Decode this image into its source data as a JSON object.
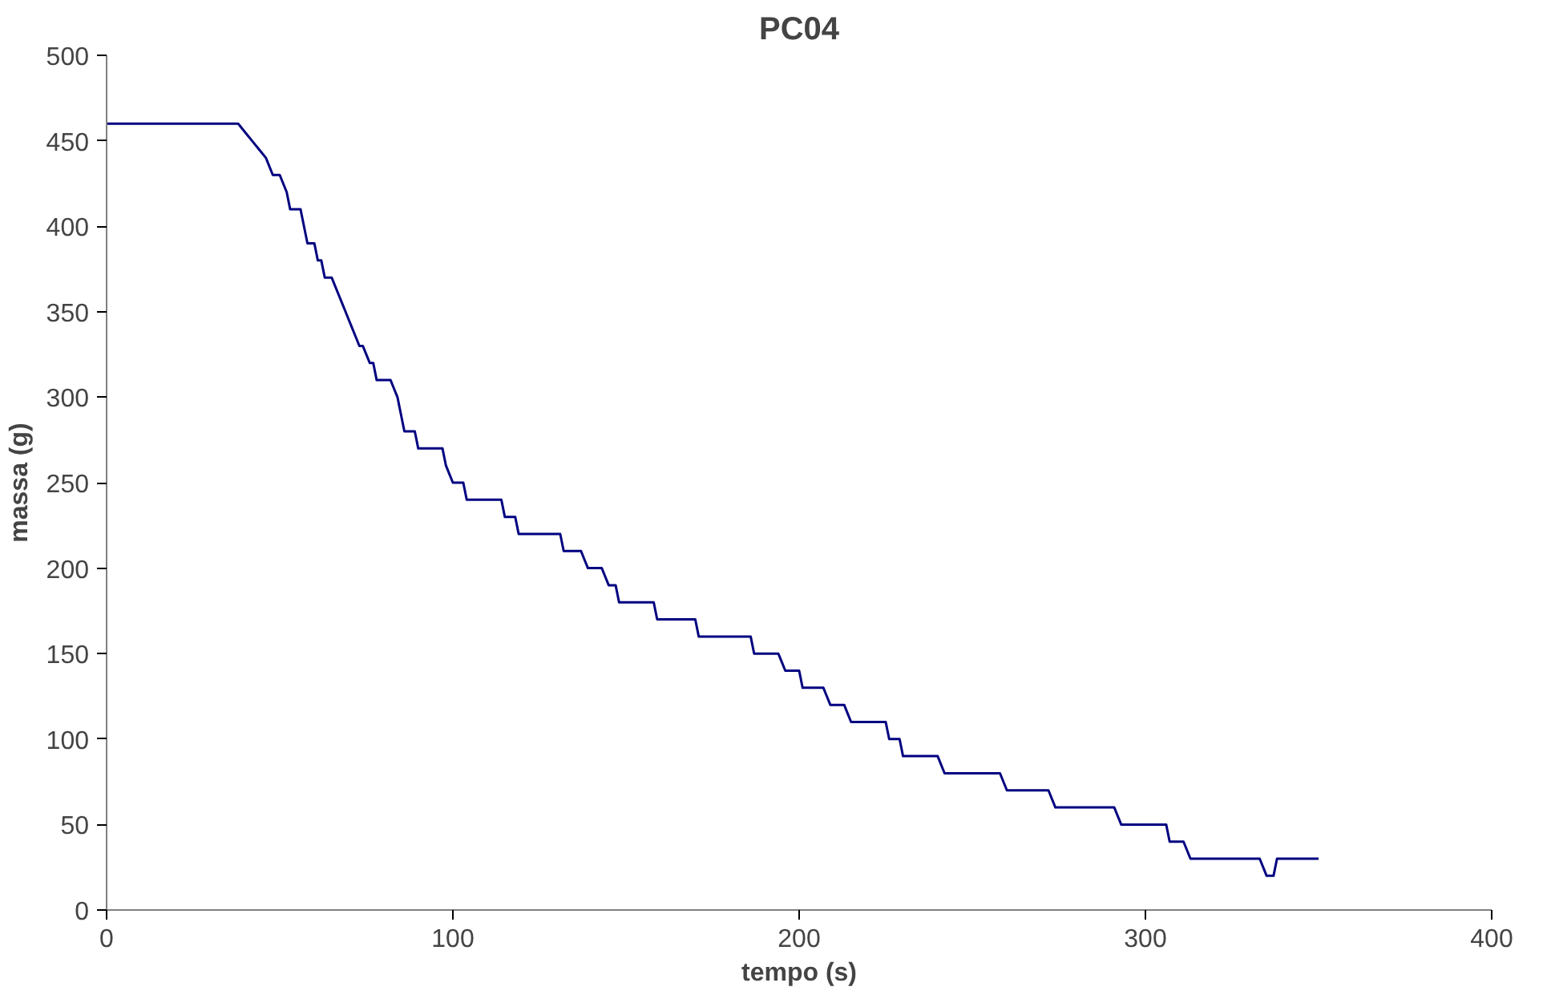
{
  "chart_data": {
    "type": "line",
    "title": "PC04",
    "xlabel": "tempo (s)",
    "ylabel": "massa (g)",
    "xlim": [
      0,
      400
    ],
    "xticks": [
      0,
      100,
      200,
      300,
      400
    ],
    "ylim": [
      0,
      500
    ],
    "yticks": [
      0,
      50,
      100,
      150,
      200,
      250,
      300,
      350,
      400,
      450,
      500
    ],
    "grid": false,
    "marker": "none",
    "line_style": "solid",
    "series": [
      {
        "color": "#000080",
        "x": [
          0,
          38,
          40,
          42,
          44,
          46,
          48,
          50,
          52,
          53,
          56,
          57,
          58,
          60,
          61,
          62,
          63,
          65,
          66,
          67,
          68,
          69,
          70,
          71,
          72,
          73,
          74,
          75,
          76,
          77,
          78,
          82,
          83,
          84,
          85,
          86,
          89,
          90,
          97,
          98,
          99,
          100,
          103,
          104,
          114,
          115,
          118,
          119,
          131,
          132,
          137,
          138,
          139,
          143,
          144,
          145,
          147,
          148,
          158,
          159,
          170,
          171,
          186,
          187,
          194,
          195,
          196,
          200,
          201,
          207,
          208,
          209,
          213,
          214,
          215,
          225,
          226,
          229,
          230,
          240,
          242,
          258,
          260,
          272,
          274,
          291,
          293,
          306,
          307,
          311,
          313,
          333,
          335,
          337,
          338,
          350
        ],
        "values": [
          460,
          460,
          455,
          450,
          445,
          440,
          430,
          430,
          420,
          410,
          410,
          400,
          390,
          390,
          380,
          380,
          370,
          370,
          365,
          360,
          355,
          350,
          345,
          340,
          335,
          330,
          330,
          325,
          320,
          320,
          310,
          310,
          305,
          300,
          290,
          280,
          280,
          270,
          270,
          260,
          255,
          250,
          250,
          240,
          240,
          230,
          230,
          220,
          220,
          210,
          210,
          205,
          200,
          200,
          195,
          190,
          190,
          180,
          180,
          170,
          170,
          160,
          160,
          150,
          150,
          145,
          140,
          140,
          130,
          130,
          125,
          120,
          120,
          115,
          110,
          110,
          100,
          100,
          90,
          90,
          80,
          80,
          70,
          70,
          60,
          60,
          50,
          50,
          40,
          40,
          30,
          30,
          20,
          20,
          30,
          30
        ]
      }
    ]
  }
}
